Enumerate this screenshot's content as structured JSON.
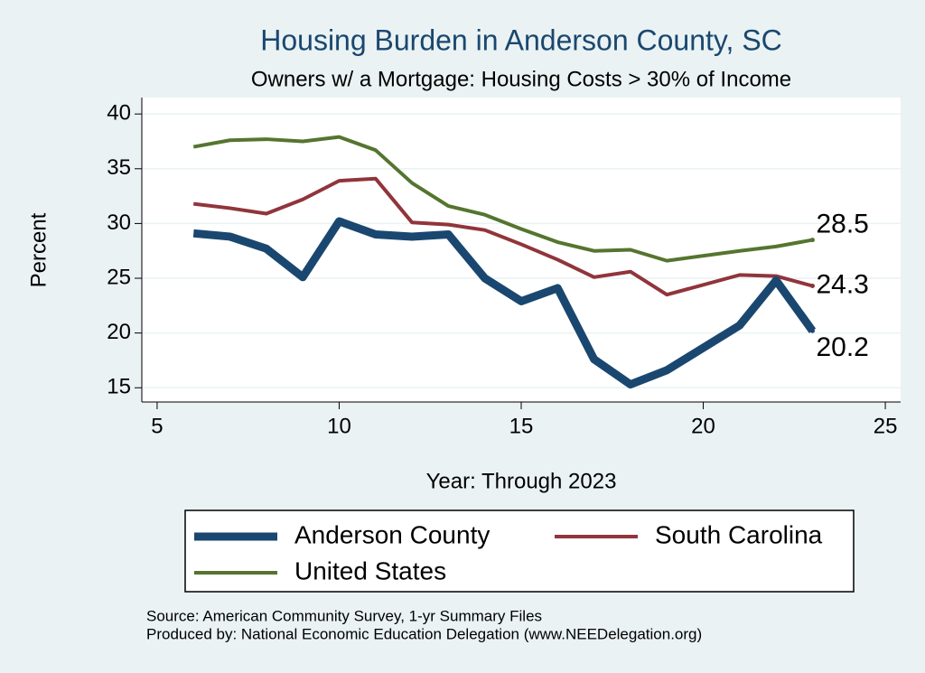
{
  "chart_data": {
    "type": "line",
    "title": "Housing Burden in Anderson County, SC",
    "subtitle": "Owners w/ a Mortgage: Housing Costs > 30% of Income",
    "x_label": "Year: Through 2023",
    "y_label": "Percent",
    "x": [
      6,
      7,
      8,
      9,
      10,
      11,
      12,
      13,
      14,
      15,
      16,
      17,
      18,
      19,
      21,
      22,
      23
    ],
    "series": [
      {
        "name": "Anderson County",
        "color": "#1a476f",
        "width": 9,
        "values": [
          29.1,
          28.8,
          27.7,
          25.1,
          30.2,
          29.0,
          28.8,
          29.0,
          25.0,
          22.9,
          24.1,
          17.6,
          15.3,
          16.6,
          20.7,
          24.8,
          20.2
        ]
      },
      {
        "name": "South Carolina",
        "color": "#90353b",
        "width": 4,
        "values": [
          31.8,
          31.4,
          30.9,
          32.2,
          33.9,
          34.1,
          30.1,
          29.9,
          29.4,
          28.1,
          26.7,
          25.1,
          25.6,
          23.5,
          25.3,
          25.2,
          24.3
        ]
      },
      {
        "name": "United States",
        "color": "#55752f",
        "width": 4,
        "values": [
          37.0,
          37.6,
          37.7,
          37.5,
          37.9,
          36.7,
          33.7,
          31.6,
          30.8,
          29.5,
          28.3,
          27.5,
          27.6,
          26.6,
          27.5,
          27.9,
          28.5
        ]
      }
    ],
    "xlim": [
      4.58,
      25.42
    ],
    "ylim": [
      13.7,
      41.5
    ],
    "xticks": [
      5,
      10,
      15,
      20,
      25
    ],
    "yticks": [
      15,
      20,
      25,
      30,
      35,
      40
    ],
    "grid": true,
    "source": "Source: American Community Survey, 1-yr Summary Files",
    "producer": "Produced by: National Economic Education Delegation (www.NEEDelegation.org)"
  }
}
